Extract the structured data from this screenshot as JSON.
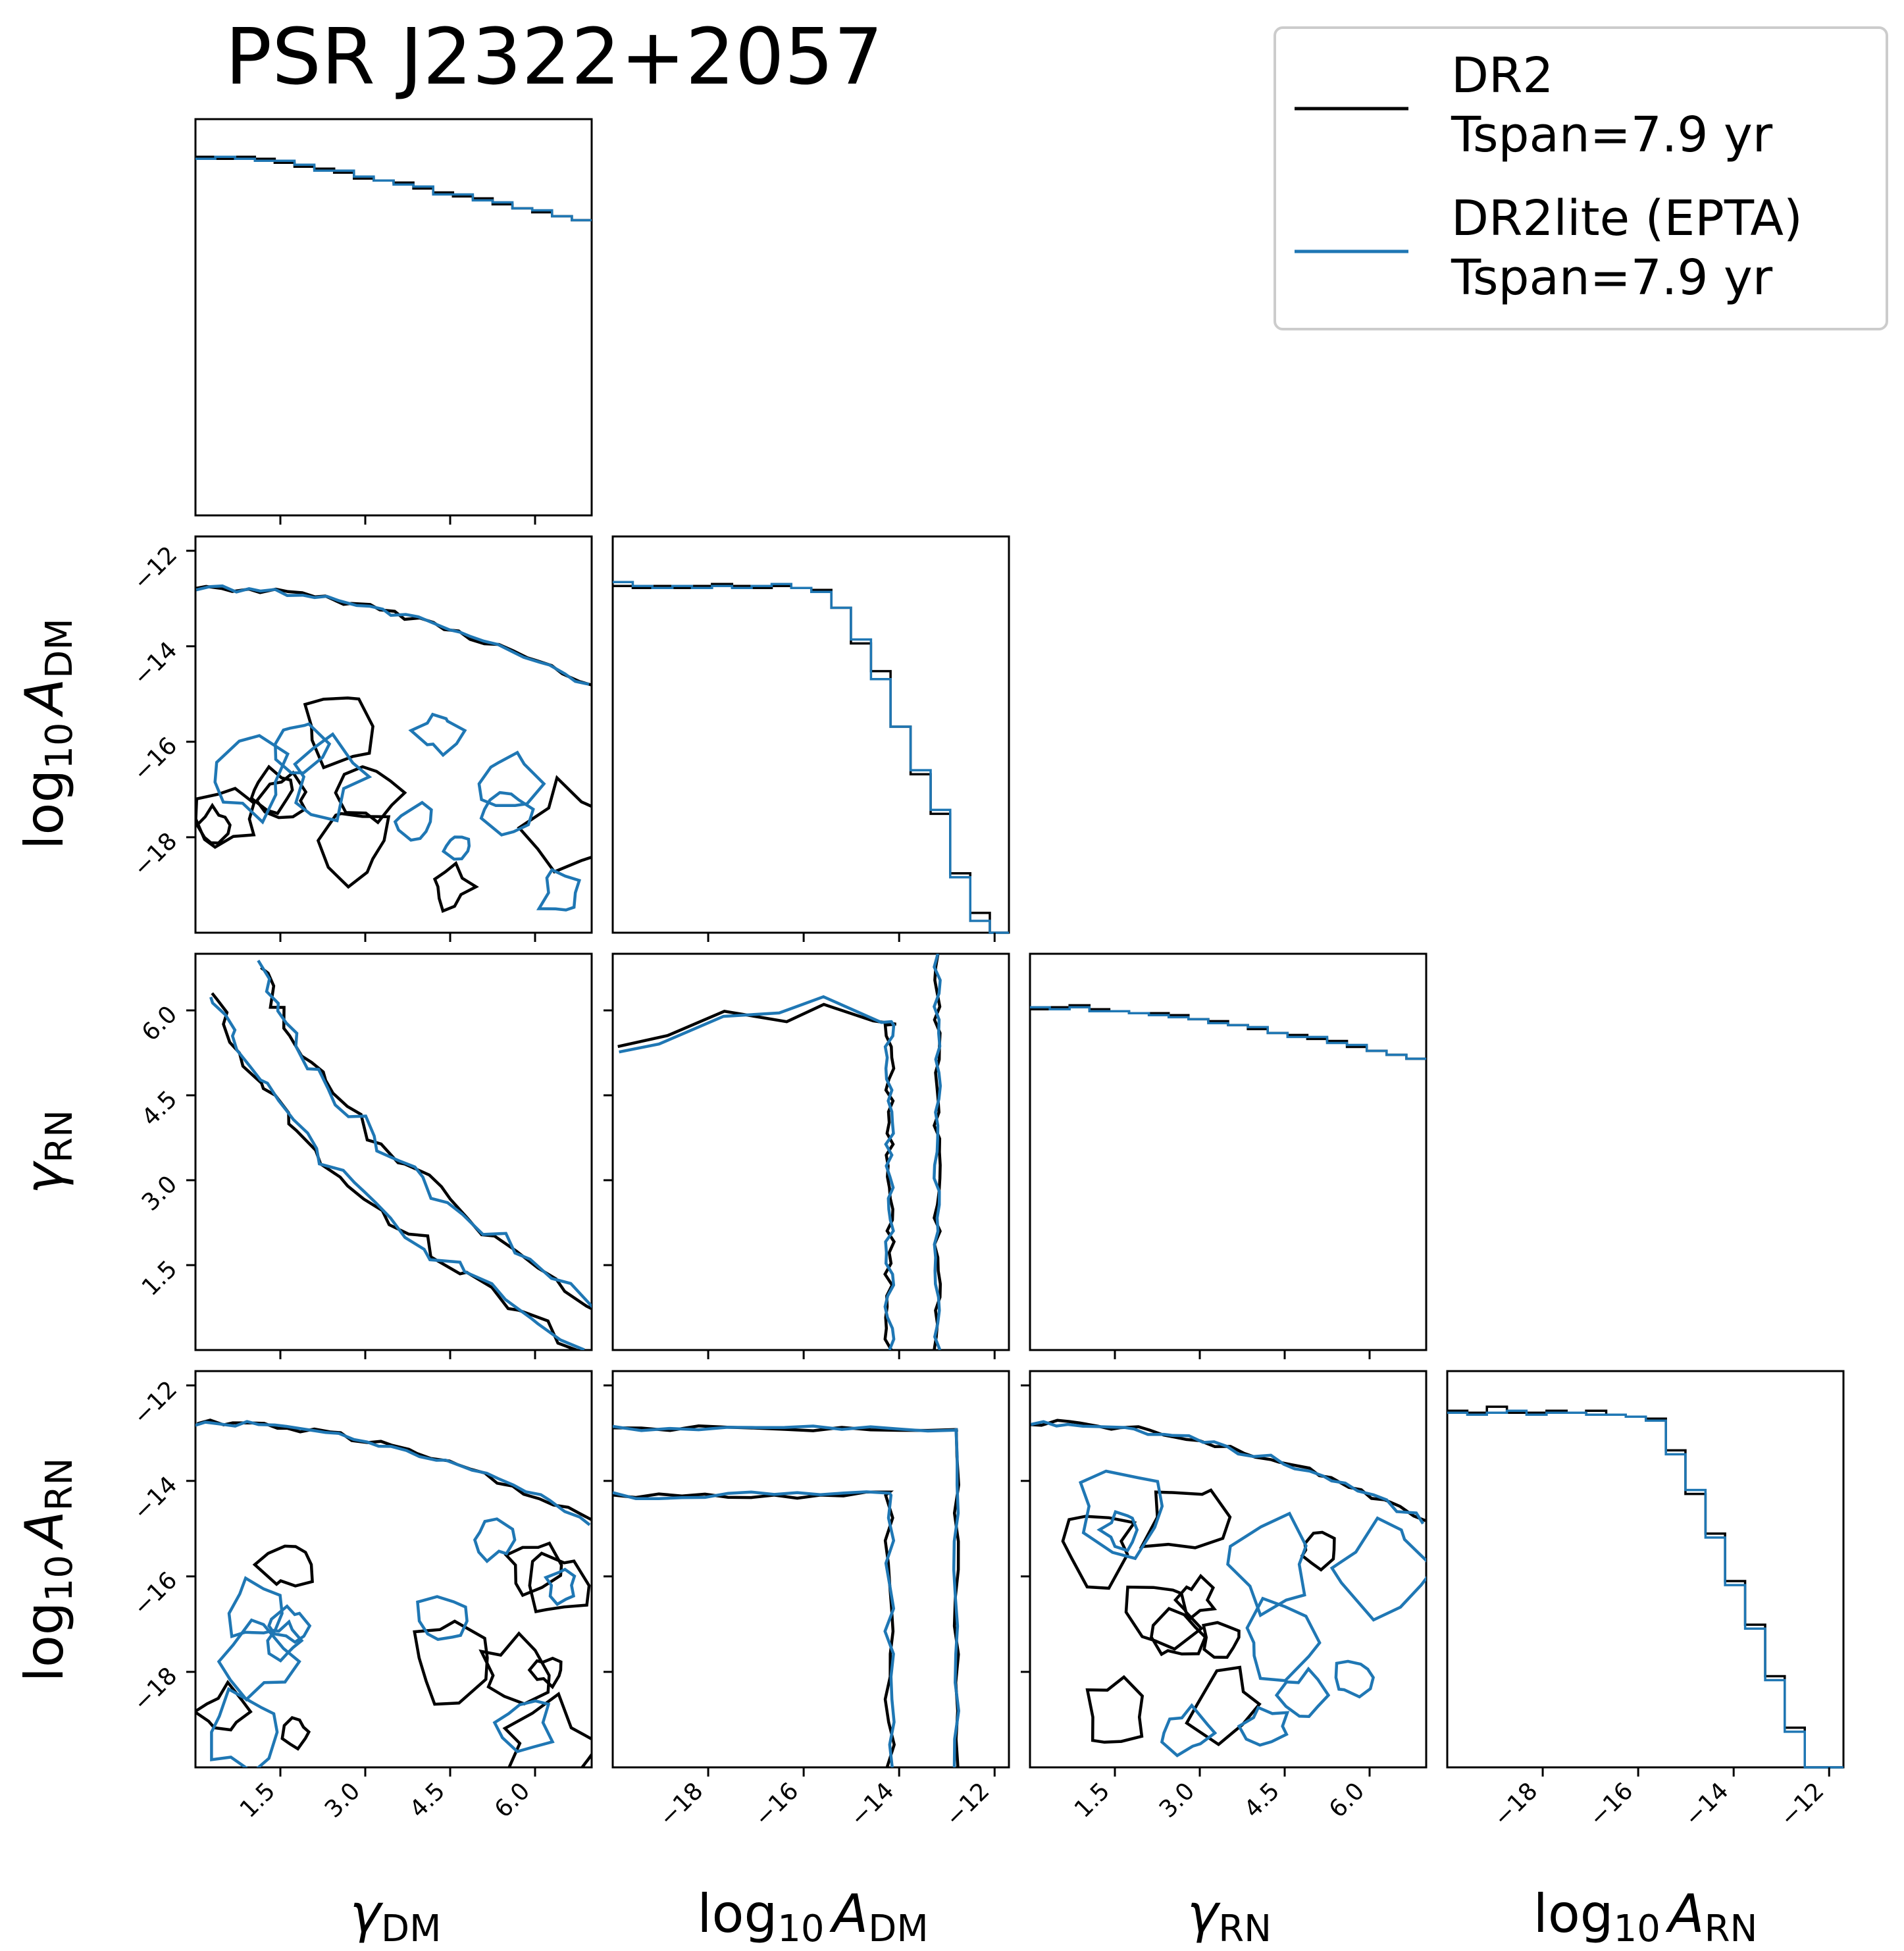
{
  "title": "PSR J2322+2057",
  "legend": {
    "position": "top-right",
    "entries": [
      {
        "line1": "DR2",
        "line2": "Tspan=7.9 yr",
        "color": "#000000"
      },
      {
        "line1": "DR2lite (EPTA)",
        "line2": "Tspan=7.9 yr",
        "color": "#1f77b4"
      }
    ]
  },
  "colors": {
    "dr2": "#000000",
    "dr2lite": "#1f77b4"
  },
  "chart_data": {
    "type": "corner",
    "parameters": [
      {
        "key": "gamma_dm",
        "label_main": "γ",
        "label_sub": "DM",
        "range": [
          0,
          7
        ],
        "ticks": [
          1.5,
          3.0,
          4.5,
          6.0
        ],
        "tick_labels": [
          "1.5",
          "3.0",
          "4.5",
          "6.0"
        ]
      },
      {
        "key": "log10_A_dm",
        "label_main": "log",
        "label_sub": "10",
        "label_var": "A",
        "label_var_sub": "DM",
        "range": [
          -20,
          -11.7
        ],
        "ticks": [
          -18,
          -16,
          -14,
          -12
        ],
        "tick_labels": [
          "−18",
          "−16",
          "−14",
          "−12"
        ]
      },
      {
        "key": "gamma_rn",
        "label_main": "γ",
        "label_sub": "RN",
        "range": [
          0,
          7
        ],
        "ticks": [
          1.5,
          3.0,
          4.5,
          6.0
        ],
        "tick_labels": [
          "1.5",
          "3.0",
          "4.5",
          "6.0"
        ]
      },
      {
        "key": "log10_A_rn",
        "label_main": "log",
        "label_sub": "10",
        "label_var": "A",
        "label_var_sub": "RN",
        "range": [
          -20,
          -11.7
        ],
        "ticks": [
          -18,
          -16,
          -14,
          -12
        ],
        "tick_labels": [
          "−18",
          "−16",
          "−14",
          "−12"
        ]
      }
    ],
    "histograms": {
      "gamma_dm": {
        "bins": [
          0,
          0.35,
          0.7,
          1.05,
          1.4,
          1.75,
          2.1,
          2.45,
          2.8,
          3.15,
          3.5,
          3.85,
          4.2,
          4.55,
          4.9,
          5.25,
          5.6,
          5.95,
          6.3,
          6.65,
          7.0
        ],
        "dr2": [
          0.905,
          0.9,
          0.905,
          0.9,
          0.89,
          0.88,
          0.875,
          0.865,
          0.85,
          0.845,
          0.84,
          0.825,
          0.815,
          0.805,
          0.8,
          0.785,
          0.775,
          0.765,
          0.755,
          0.745
        ],
        "dr2lite": [
          0.9,
          0.905,
          0.9,
          0.895,
          0.895,
          0.885,
          0.87,
          0.87,
          0.855,
          0.845,
          0.835,
          0.83,
          0.81,
          0.81,
          0.795,
          0.79,
          0.775,
          0.77,
          0.755,
          0.745
        ]
      },
      "log10_A_dm": {
        "bins": [
          -20,
          -19.58,
          -19.17,
          -18.75,
          -18.34,
          -17.92,
          -17.5,
          -17.09,
          -16.67,
          -16.26,
          -15.84,
          -15.42,
          -15.01,
          -14.59,
          -14.18,
          -13.76,
          -13.34,
          -12.93,
          -12.51,
          -12.1,
          -11.7
        ],
        "dr2": [
          0.875,
          0.87,
          0.875,
          0.87,
          0.875,
          0.88,
          0.875,
          0.87,
          0.875,
          0.87,
          0.865,
          0.82,
          0.73,
          0.66,
          0.52,
          0.4,
          0.3,
          0.15,
          0.05,
          0.0
        ],
        "dr2lite": [
          0.885,
          0.875,
          0.87,
          0.875,
          0.87,
          0.875,
          0.87,
          0.875,
          0.88,
          0.87,
          0.86,
          0.82,
          0.74,
          0.64,
          0.52,
          0.41,
          0.31,
          0.14,
          0.03,
          0.0
        ]
      },
      "gamma_rn": {
        "bins": [
          0,
          0.35,
          0.7,
          1.05,
          1.4,
          1.75,
          2.1,
          2.45,
          2.8,
          3.15,
          3.5,
          3.85,
          4.2,
          4.55,
          4.9,
          5.25,
          5.6,
          5.95,
          6.3,
          6.65,
          7.0
        ],
        "dr2": [
          0.86,
          0.865,
          0.87,
          0.86,
          0.855,
          0.85,
          0.85,
          0.845,
          0.835,
          0.83,
          0.82,
          0.81,
          0.8,
          0.795,
          0.785,
          0.78,
          0.765,
          0.755,
          0.745,
          0.735
        ],
        "dr2lite": [
          0.865,
          0.86,
          0.865,
          0.855,
          0.855,
          0.85,
          0.845,
          0.84,
          0.835,
          0.825,
          0.82,
          0.815,
          0.8,
          0.79,
          0.79,
          0.775,
          0.77,
          0.755,
          0.745,
          0.735
        ]
      },
      "log10_A_rn": {
        "bins": [
          -20,
          -19.58,
          -19.17,
          -18.75,
          -18.34,
          -17.92,
          -17.5,
          -17.09,
          -16.67,
          -16.26,
          -15.84,
          -15.42,
          -15.01,
          -14.59,
          -14.18,
          -13.76,
          -13.34,
          -12.93,
          -12.51,
          -12.1,
          -11.7
        ],
        "dr2": [
          0.9,
          0.895,
          0.91,
          0.895,
          0.895,
          0.9,
          0.895,
          0.9,
          0.89,
          0.885,
          0.88,
          0.8,
          0.69,
          0.59,
          0.47,
          0.36,
          0.23,
          0.1,
          0.0,
          0.0
        ],
        "dr2lite": [
          0.895,
          0.89,
          0.895,
          0.9,
          0.89,
          0.895,
          0.895,
          0.89,
          0.89,
          0.885,
          0.875,
          0.79,
          0.7,
          0.58,
          0.46,
          0.35,
          0.22,
          0.09,
          0.0,
          0.0
        ]
      }
    }
  }
}
